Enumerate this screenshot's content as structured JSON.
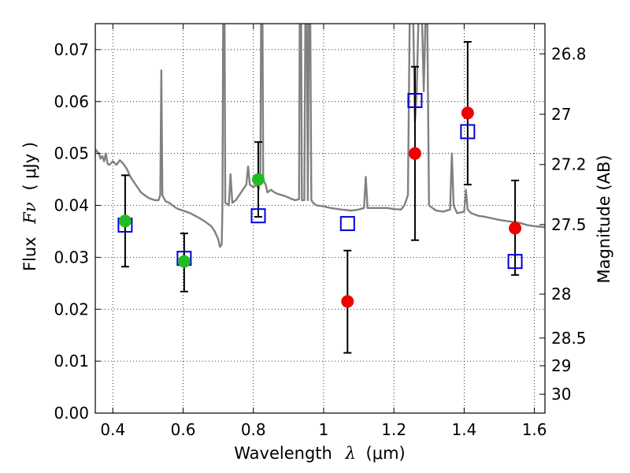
{
  "chart_data": {
    "type": "scatter",
    "xlabel_text": "Wavelength",
    "xlabel_symbol": "λ",
    "xlabel_unit": "(μm)",
    "ylabel_text": "Flux",
    "ylabel_symbol": "Fν",
    "ylabel_unit": "( μJy )",
    "y2label": "Magnitude (AB)",
    "xlim": [
      0.35,
      1.63
    ],
    "ylim": [
      0.0,
      0.075
    ],
    "grid": true,
    "x_ticks": [
      0.4,
      0.6,
      0.8,
      1.0,
      1.2,
      1.4,
      1.6
    ],
    "x_tick_labels": [
      "0.4",
      "0.6",
      "0.8",
      "1",
      "1.2",
      "1.4",
      "1.6"
    ],
    "y_ticks": [
      0.0,
      0.01,
      0.02,
      0.03,
      0.04,
      0.05,
      0.06,
      0.07
    ],
    "y_tick_labels": [
      "0.00",
      "0.01",
      "0.02",
      "0.03",
      "0.04",
      "0.05",
      "0.06",
      "0.07"
    ],
    "mag_ticks": [
      26.8,
      27.0,
      27.2,
      27.5,
      28.0,
      28.5,
      29.0,
      30.0
    ],
    "mag_tick_labels": [
      "26.8",
      "27",
      "27.2",
      "27.5",
      "28",
      "28.5",
      "29",
      "30"
    ],
    "colors": {
      "model": "#808080",
      "green": "#22bb22",
      "red": "#ee0000",
      "blue": "#0000dd",
      "error": "#000000"
    },
    "series": [
      {
        "name": "model_spectrum",
        "style": "line",
        "points": [
          [
            0.35,
            0.0508
          ],
          [
            0.36,
            0.05
          ],
          [
            0.365,
            0.049
          ],
          [
            0.37,
            0.0495
          ],
          [
            0.375,
            0.0485
          ],
          [
            0.38,
            0.05
          ],
          [
            0.385,
            0.048
          ],
          [
            0.39,
            0.0478
          ],
          [
            0.4,
            0.0485
          ],
          [
            0.41,
            0.0478
          ],
          [
            0.42,
            0.0487
          ],
          [
            0.43,
            0.048
          ],
          [
            0.44,
            0.047
          ],
          [
            0.45,
            0.0455
          ],
          [
            0.46,
            0.0445
          ],
          [
            0.47,
            0.0435
          ],
          [
            0.48,
            0.0425
          ],
          [
            0.49,
            0.042
          ],
          [
            0.5,
            0.0415
          ],
          [
            0.51,
            0.0412
          ],
          [
            0.52,
            0.041
          ],
          [
            0.53,
            0.041
          ],
          [
            0.535,
            0.042
          ],
          [
            0.538,
            0.066
          ],
          [
            0.541,
            0.042
          ],
          [
            0.55,
            0.0408
          ],
          [
            0.56,
            0.0405
          ],
          [
            0.57,
            0.04
          ],
          [
            0.58,
            0.0395
          ],
          [
            0.59,
            0.0392
          ],
          [
            0.6,
            0.039
          ],
          [
            0.62,
            0.0385
          ],
          [
            0.64,
            0.0378
          ],
          [
            0.66,
            0.037
          ],
          [
            0.68,
            0.036
          ],
          [
            0.69,
            0.035
          ],
          [
            0.7,
            0.0335
          ],
          [
            0.705,
            0.032
          ],
          [
            0.71,
            0.0325
          ],
          [
            0.712,
            0.04
          ],
          [
            0.714,
            0.076
          ],
          [
            0.718,
            0.076
          ],
          [
            0.72,
            0.0405
          ],
          [
            0.73,
            0.04
          ],
          [
            0.735,
            0.046
          ],
          [
            0.74,
            0.0405
          ],
          [
            0.75,
            0.041
          ],
          [
            0.76,
            0.042
          ],
          [
            0.77,
            0.043
          ],
          [
            0.78,
            0.044
          ],
          [
            0.785,
            0.0475
          ],
          [
            0.79,
            0.044
          ],
          [
            0.8,
            0.0435
          ],
          [
            0.81,
            0.044
          ],
          [
            0.815,
            0.043
          ],
          [
            0.82,
            0.046
          ],
          [
            0.822,
            0.076
          ],
          [
            0.826,
            0.076
          ],
          [
            0.828,
            0.045
          ],
          [
            0.835,
            0.044
          ],
          [
            0.84,
            0.0425
          ],
          [
            0.85,
            0.043
          ],
          [
            0.86,
            0.0425
          ],
          [
            0.87,
            0.0422
          ],
          [
            0.88,
            0.042
          ],
          [
            0.89,
            0.0418
          ],
          [
            0.9,
            0.0415
          ],
          [
            0.91,
            0.0412
          ],
          [
            0.92,
            0.041
          ],
          [
            0.93,
            0.0412
          ],
          [
            0.932,
            0.076
          ],
          [
            0.936,
            0.076
          ],
          [
            0.938,
            0.041
          ],
          [
            0.945,
            0.041
          ],
          [
            0.948,
            0.076
          ],
          [
            0.952,
            0.076
          ],
          [
            0.955,
            0.041
          ],
          [
            0.958,
            0.076
          ],
          [
            0.962,
            0.076
          ],
          [
            0.965,
            0.041
          ],
          [
            0.97,
            0.0405
          ],
          [
            0.98,
            0.04
          ],
          [
            1.0,
            0.0398
          ],
          [
            1.02,
            0.0395
          ],
          [
            1.05,
            0.0392
          ],
          [
            1.08,
            0.039
          ],
          [
            1.1,
            0.0392
          ],
          [
            1.115,
            0.0395
          ],
          [
            1.12,
            0.0455
          ],
          [
            1.125,
            0.0395
          ],
          [
            1.14,
            0.0395
          ],
          [
            1.16,
            0.0395
          ],
          [
            1.18,
            0.0395
          ],
          [
            1.2,
            0.0393
          ],
          [
            1.22,
            0.0392
          ],
          [
            1.23,
            0.04
          ],
          [
            1.24,
            0.042
          ],
          [
            1.245,
            0.076
          ],
          [
            1.255,
            0.076
          ],
          [
            1.26,
            0.056
          ],
          [
            1.265,
            0.062
          ],
          [
            1.27,
            0.076
          ],
          [
            1.28,
            0.076
          ],
          [
            1.285,
            0.062
          ],
          [
            1.29,
            0.076
          ],
          [
            1.295,
            0.076
          ],
          [
            1.3,
            0.04
          ],
          [
            1.32,
            0.039
          ],
          [
            1.34,
            0.0388
          ],
          [
            1.36,
            0.0392
          ],
          [
            1.365,
            0.05
          ],
          [
            1.37,
            0.04
          ],
          [
            1.38,
            0.0385
          ],
          [
            1.4,
            0.0388
          ],
          [
            1.405,
            0.043
          ],
          [
            1.41,
            0.0392
          ],
          [
            1.42,
            0.0385
          ],
          [
            1.44,
            0.038
          ],
          [
            1.46,
            0.0378
          ],
          [
            1.48,
            0.0375
          ],
          [
            1.5,
            0.0372
          ],
          [
            1.52,
            0.037
          ],
          [
            1.54,
            0.0368
          ],
          [
            1.56,
            0.0366
          ],
          [
            1.58,
            0.0362
          ],
          [
            1.6,
            0.036
          ],
          [
            1.63,
            0.0358
          ]
        ]
      },
      {
        "name": "model_photometry",
        "style": "open_square",
        "points": [
          [
            0.435,
            0.0362
          ],
          [
            0.603,
            0.0298
          ],
          [
            0.814,
            0.038
          ],
          [
            1.068,
            0.0365
          ],
          [
            1.26,
            0.0602
          ],
          [
            1.41,
            0.0542
          ],
          [
            1.545,
            0.0292
          ]
        ]
      },
      {
        "name": "observed_optical",
        "style": "filled_circle_green",
        "points": [
          [
            0.435,
            0.037,
            0.0282,
            0.0458
          ],
          [
            0.603,
            0.0292,
            0.0234,
            0.0346
          ],
          [
            0.814,
            0.045,
            0.0378,
            0.0522
          ]
        ]
      },
      {
        "name": "observed_nir",
        "style": "filled_circle_red",
        "points": [
          [
            1.068,
            0.0215,
            0.0116,
            0.0313
          ],
          [
            1.26,
            0.05,
            0.0333,
            0.0667
          ],
          [
            1.41,
            0.0578,
            0.044,
            0.0715
          ],
          [
            1.545,
            0.0356,
            0.0266,
            0.0448
          ]
        ]
      }
    ]
  }
}
